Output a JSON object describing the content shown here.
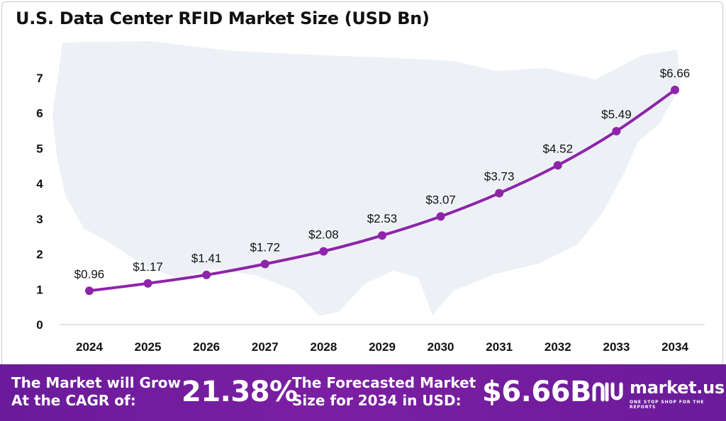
{
  "title": "U.S. Data Center RFID Market Size (USD Bn)",
  "chart_data": {
    "type": "line",
    "title": "U.S. Data Center RFID Market Size (USD Bn)",
    "xlabel": "",
    "ylabel": "",
    "categories": [
      "2024",
      "2025",
      "2026",
      "2027",
      "2028",
      "2029",
      "2030",
      "2031",
      "2032",
      "2033",
      "2034"
    ],
    "values": [
      0.96,
      1.17,
      1.41,
      1.72,
      2.08,
      2.53,
      3.07,
      3.73,
      4.52,
      5.49,
      6.66
    ],
    "data_labels": [
      "$0.96",
      "$1.17",
      "$1.41",
      "$1.72",
      "$2.08",
      "$2.53",
      "$3.07",
      "$3.73",
      "$4.52",
      "$5.49",
      "$6.66"
    ],
    "y_ticks": [
      "0",
      "1",
      "2",
      "3",
      "4",
      "5",
      "6",
      "7"
    ],
    "ylim": [
      0,
      7
    ],
    "grid": false,
    "legend": "none",
    "line_color": "#8e24aa",
    "background": "U.S. map silhouette"
  },
  "banner": {
    "cagr_label_line1": "The Market will Grow",
    "cagr_label_line2": "At the CAGR of:",
    "cagr_value": "21.38%",
    "forecast_label_line1": "The Forecasted Market",
    "forecast_label_line2": "Size for 2034 in USD:",
    "forecast_value": "$6.66B",
    "color": "#7b1fa2"
  },
  "brand": {
    "name": "market.us",
    "tagline": "ONE STOP SHOP FOR THE REPORTS"
  }
}
